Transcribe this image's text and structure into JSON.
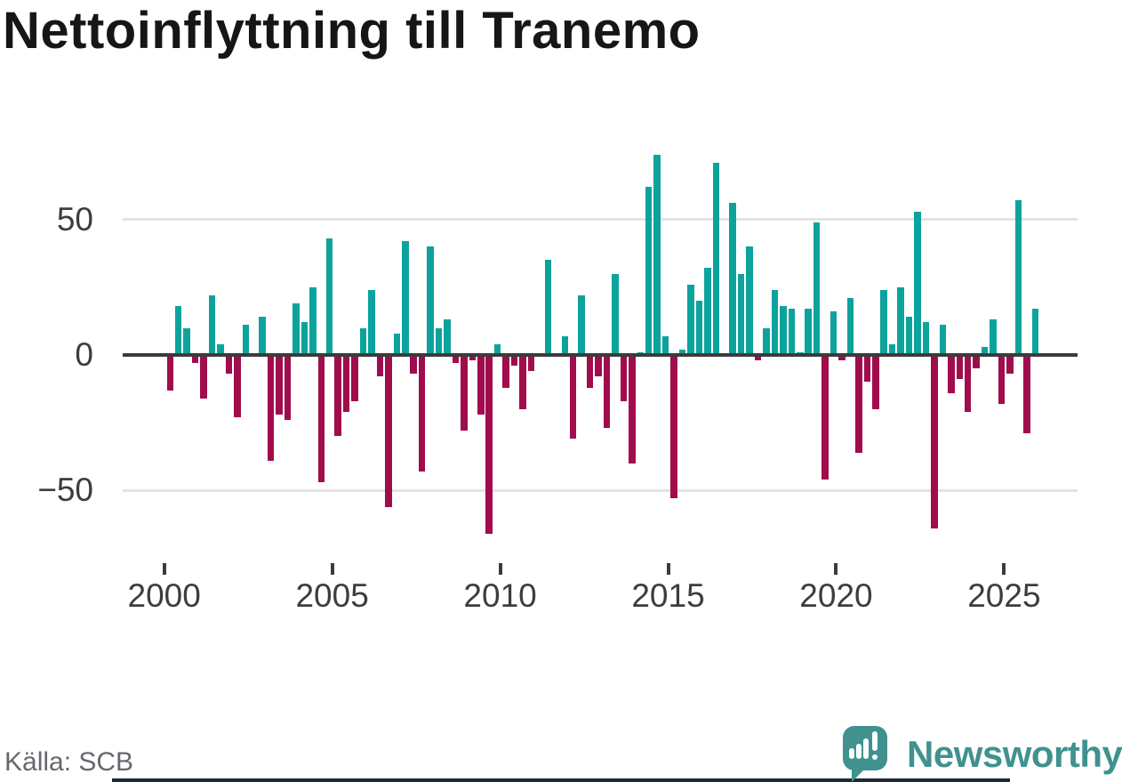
{
  "title": "Nettoinflyttning till Tranemo",
  "source": "Källa: SCB",
  "branding": {
    "logo_text": "Newsworthy",
    "logo_color": "#3f928e",
    "footer_bar_color": "#1d2935"
  },
  "chart_data": {
    "type": "bar",
    "title": "Nettoinflyttning till Tranemo",
    "frequency": "quarterly",
    "start": "2000Q1",
    "end": "2025Q4",
    "xlabel": "",
    "ylabel": "",
    "ylim": [
      -70,
      80
    ],
    "legend": "none",
    "grid": "horizontal gridlines at 50 and -50, dark zero axis",
    "colors": {
      "positive_bar": "#0da39d",
      "negative_bar": "#a10c4c",
      "zero_axis": "#3b3b3b",
      "gridline": "#e3e3e3",
      "tick_label": "#3d3d3d"
    },
    "y_ticks": [
      {
        "label": "50",
        "value": 50
      },
      {
        "label": "0",
        "value": 0
      },
      {
        "label": "−50",
        "value": -50
      }
    ],
    "x_ticks": [
      {
        "label": "2000",
        "year": 2000
      },
      {
        "label": "2005",
        "year": 2005
      },
      {
        "label": "2010",
        "year": 2010
      },
      {
        "label": "2015",
        "year": 2015
      },
      {
        "label": "2020",
        "year": 2020
      },
      {
        "label": "2025",
        "year": 2025
      }
    ],
    "years": [
      {
        "year": 2000,
        "q": [
          -13,
          18,
          10,
          -3
        ]
      },
      {
        "year": 2001,
        "q": [
          -16,
          22,
          4,
          -7
        ]
      },
      {
        "year": 2002,
        "q": [
          -23,
          11,
          0,
          14
        ]
      },
      {
        "year": 2003,
        "q": [
          -39,
          -22,
          -24,
          19
        ]
      },
      {
        "year": 2004,
        "q": [
          12,
          25,
          -47,
          43
        ]
      },
      {
        "year": 2005,
        "q": [
          -30,
          -21,
          -17,
          10
        ]
      },
      {
        "year": 2006,
        "q": [
          24,
          -8,
          -56,
          8
        ]
      },
      {
        "year": 2007,
        "q": [
          42,
          -7,
          -43,
          40
        ]
      },
      {
        "year": 2008,
        "q": [
          10,
          13,
          -3,
          -28
        ]
      },
      {
        "year": 2009,
        "q": [
          -2,
          -22,
          -66,
          4
        ]
      },
      {
        "year": 2010,
        "q": [
          -12,
          -4,
          -20,
          -6
        ]
      },
      {
        "year": 2011,
        "q": [
          0,
          35,
          0,
          7
        ]
      },
      {
        "year": 2012,
        "q": [
          -31,
          22,
          -12,
          -8
        ]
      },
      {
        "year": 2013,
        "q": [
          -27,
          30,
          -17,
          -40
        ]
      },
      {
        "year": 2014,
        "q": [
          1,
          62,
          74,
          7
        ]
      },
      {
        "year": 2015,
        "q": [
          -53,
          2,
          26,
          20
        ]
      },
      {
        "year": 2016,
        "q": [
          32,
          71,
          0,
          56
        ]
      },
      {
        "year": 2017,
        "q": [
          30,
          40,
          -2,
          10
        ]
      },
      {
        "year": 2018,
        "q": [
          24,
          18,
          17,
          1
        ]
      },
      {
        "year": 2019,
        "q": [
          17,
          49,
          -46,
          16
        ]
      },
      {
        "year": 2020,
        "q": [
          -2,
          21,
          -36,
          -10
        ]
      },
      {
        "year": 2021,
        "q": [
          -20,
          24,
          4,
          25
        ]
      },
      {
        "year": 2022,
        "q": [
          14,
          53,
          12,
          -64
        ]
      },
      {
        "year": 2023,
        "q": [
          11,
          -14,
          -9,
          -21
        ]
      },
      {
        "year": 2024,
        "q": [
          -5,
          3,
          13,
          -18
        ]
      },
      {
        "year": 2025,
        "q": [
          -7,
          57,
          -29,
          17
        ]
      }
    ]
  }
}
